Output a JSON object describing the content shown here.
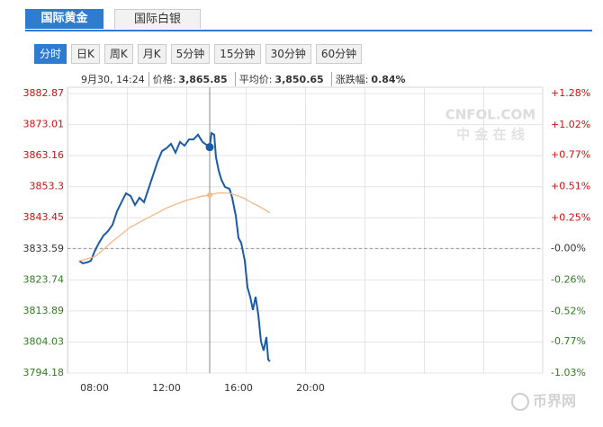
{
  "tabs": [
    "国际黄金",
    "国际白银"
  ],
  "buttons": [
    "分时",
    "日K",
    "周K",
    "月K",
    "5分钟",
    "15分钟",
    "30分钟",
    "60分钟"
  ],
  "info": {
    "time": "9月30, 14:24",
    "items": [
      {
        "label": "价格:",
        "value": "3,865.85"
      },
      {
        "label": "平均价:",
        "value": "3,850.65"
      },
      {
        "label": "涨跌幅:",
        "value": "0.84%"
      }
    ]
  },
  "watermarks": [
    "CNFOL.COM",
    "中 金 在 线",
    "币界网"
  ],
  "chart_data": {
    "type": "line",
    "x": [
      7.15,
      7.35,
      7.6,
      7.8,
      8.0,
      8.25,
      8.5,
      8.75,
      9.0,
      9.25,
      9.5,
      9.75,
      10.0,
      10.25,
      10.5,
      10.75,
      11.0,
      11.25,
      11.5,
      11.75,
      12.0,
      12.25,
      12.5,
      12.75,
      13.0,
      13.25,
      13.5,
      13.75,
      14.0,
      14.4,
      14.5,
      14.65,
      14.75,
      14.9,
      15.05,
      15.25,
      15.5,
      15.65,
      15.85,
      16.0,
      16.15,
      16.35,
      16.5,
      16.65,
      16.8,
      16.95,
      17.1,
      17.25,
      17.4,
      17.55,
      17.65,
      17.75
    ],
    "series": [
      {
        "color": "#1b5aa5",
        "values": [
          3829.8,
          3829.0,
          3829.3,
          3829.8,
          3832.7,
          3835.5,
          3837.8,
          3839.2,
          3841.2,
          3845.5,
          3848.4,
          3851.2,
          3850.4,
          3847.5,
          3849.8,
          3848.4,
          3852.6,
          3856.9,
          3861.2,
          3864.6,
          3865.5,
          3866.9,
          3864.1,
          3867.5,
          3866.3,
          3868.3,
          3868.3,
          3869.8,
          3867.5,
          3865.85,
          3870.3,
          3869.8,
          3862.6,
          3858.4,
          3855.5,
          3853.2,
          3852.6,
          3849.8,
          3844.1,
          3837.0,
          3835.5,
          3829.8,
          3821.3,
          3818.4,
          3814.2,
          3818.4,
          3812.7,
          3804.2,
          3801.3,
          3805.6,
          3798.5,
          3797.9
        ]
      },
      {
        "color": "#f3b98a",
        "values": [
          3829.8,
          3830.0,
          3830.4,
          3830.8,
          3831.0,
          3832.2,
          3833.4,
          3834.7,
          3836.0,
          3837.1,
          3838.2,
          3839.4,
          3840.5,
          3841.2,
          3842.0,
          3842.8,
          3843.5,
          3844.3,
          3845.0,
          3845.8,
          3846.5,
          3847.1,
          3847.7,
          3848.2,
          3848.8,
          3849.2,
          3849.6,
          3850.0,
          3850.3,
          3850.65,
          3850.8,
          3851.0,
          3851.2,
          3851.3,
          3851.3,
          3851.3,
          3851.2,
          3851.0,
          3850.6,
          3850.3,
          3850.0,
          3849.5,
          3849.0,
          3848.5,
          3848.0,
          3847.6,
          3847.2,
          3846.7,
          3846.2,
          3845.7,
          3845.3,
          3845.0
        ]
      }
    ],
    "cursor": 14.4,
    "xlim": [
      6.5,
      32.9
    ],
    "xticks": [
      {
        "value": 8,
        "label": "08:00"
      },
      {
        "value": 12,
        "label": "12:00"
      },
      {
        "value": 16,
        "label": "16:00"
      },
      {
        "value": 20,
        "label": "20:00"
      }
    ],
    "ylim": [
      3794.18,
      3882.87
    ],
    "yticks": [
      3882.87,
      3873.01,
      3863.16,
      3853.3,
      3843.45,
      3833.59,
      3823.74,
      3813.89,
      3804.03,
      3794.18
    ],
    "y2lim": [
      -1.03,
      1.28
    ],
    "y2ticks": [
      {
        "value": 1.28,
        "label": "+1.28%"
      },
      {
        "value": 1.02,
        "label": "+1.02%"
      },
      {
        "value": 0.77,
        "label": "+0.77%"
      },
      {
        "value": 0.51,
        "label": "+0.51%"
      },
      {
        "value": 0.25,
        "label": "+0.25%"
      },
      {
        "value": 0,
        "label": "-0.00%"
      },
      {
        "value": -0.26,
        "label": "-0.26%"
      },
      {
        "value": -0.52,
        "label": "-0.52%"
      },
      {
        "value": -0.77,
        "label": "-0.77%"
      },
      {
        "value": -1.03,
        "label": "-1.03%"
      }
    ],
    "up_color": "#cc1010",
    "down_color": "#2f7d1f",
    "flat_color": "#333333",
    "grid": true
  }
}
